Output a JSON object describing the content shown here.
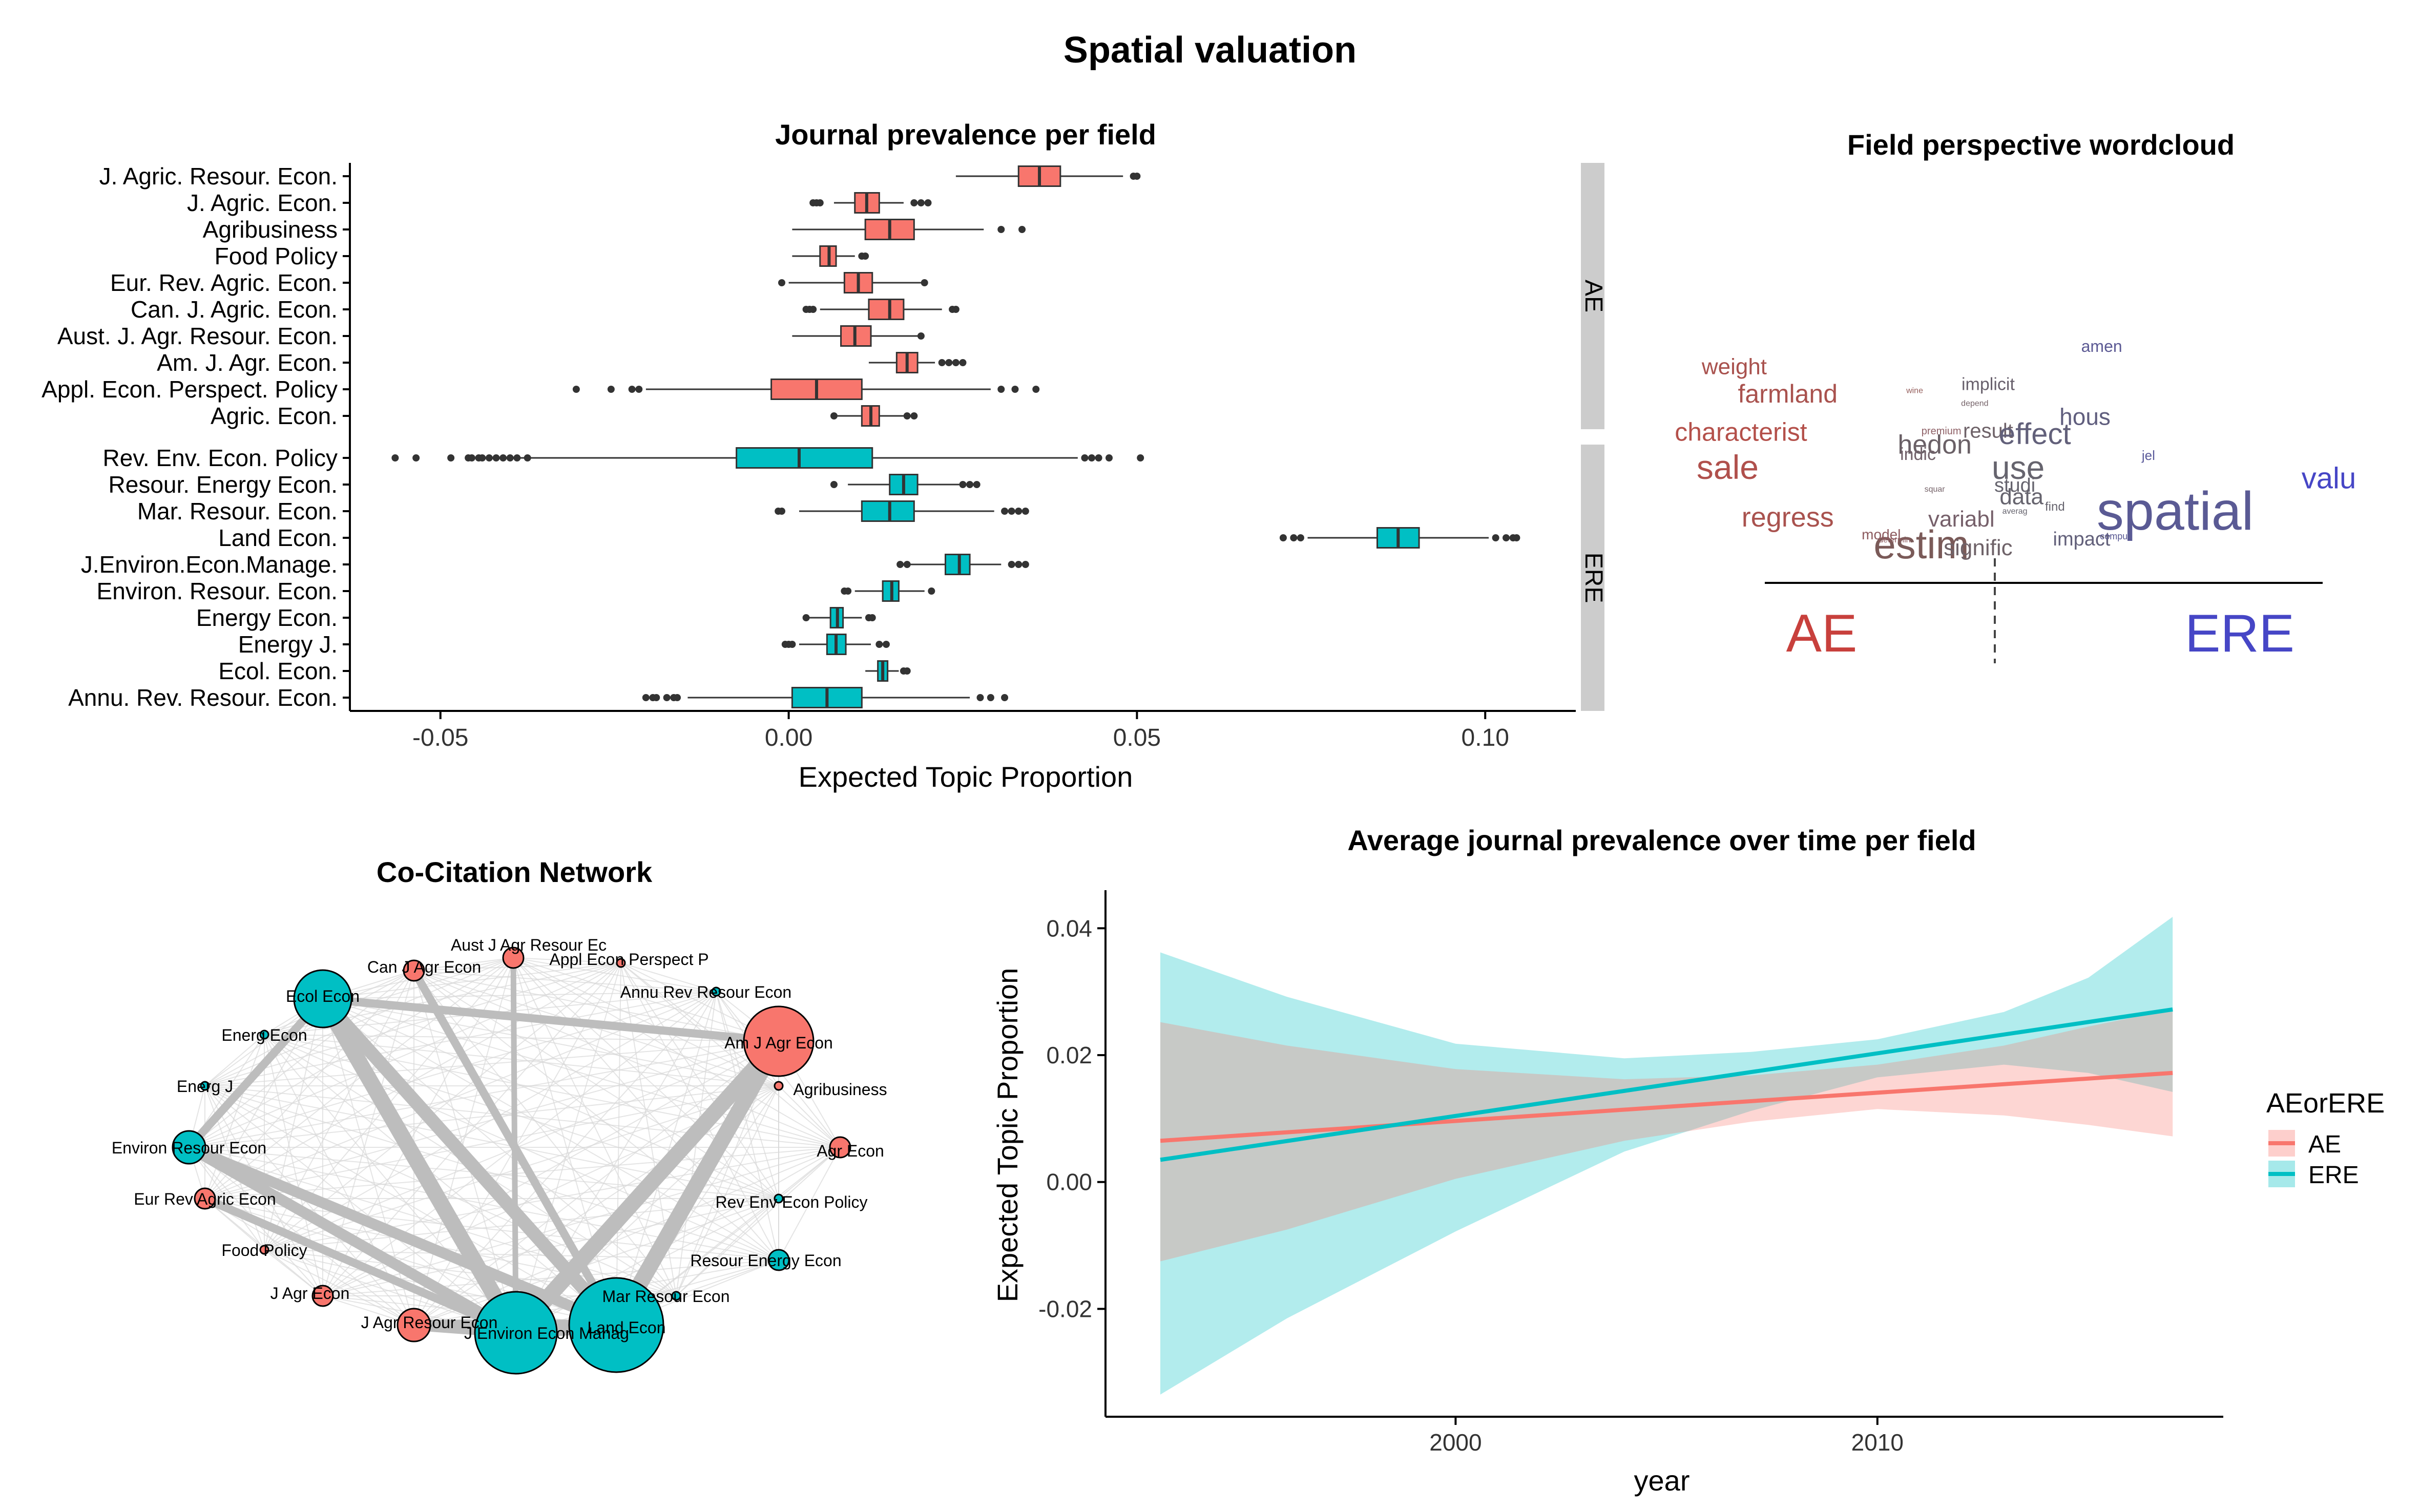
{
  "figure": {
    "title": "Spatial valuation"
  },
  "boxplot": {
    "title": "Journal prevalence per field",
    "xlabel": "Expected Topic Proportion",
    "xticks": [
      "-0.05",
      "0.00",
      "0.05",
      "0.10"
    ],
    "colors": {
      "AE": "#F8766D",
      "ERE": "#00BFC4"
    },
    "facet_labels": [
      "AE",
      "ERE"
    ]
  },
  "wordcloud": {
    "title": "Field perspective wordcloud",
    "left_label": "AE",
    "right_label": "ERE",
    "left_color": "#C8403C",
    "right_color": "#4646C6"
  },
  "network": {
    "title": "Co-Citation Network",
    "colors": {
      "AE": "#F8766D",
      "ERE": "#00BFC4"
    }
  },
  "trend": {
    "title": "Average journal prevalence over time per field",
    "xlabel": "year",
    "ylabel": "Expected Topic Proportion",
    "legend_title": "AEorERE",
    "legend_items": [
      "AE",
      "ERE"
    ]
  },
  "chart_data": [
    {
      "type": "boxplot",
      "title": "Journal prevalence per field",
      "xlabel": "Expected Topic Proportion",
      "xlim": [
        -0.063,
        0.113
      ],
      "grid": false,
      "facets": [
        {
          "name": "AE",
          "color": "#F8766D",
          "rows": [
            {
              "label": "J. Agric. Resour. Econ.",
              "whisker_low": 0.024,
              "q1": 0.033,
              "median": 0.036,
              "q3": 0.039,
              "whisker_high": 0.048,
              "outliers": [
                0.0495,
                0.05
              ]
            },
            {
              "label": "J. Agric. Econ.",
              "whisker_low": 0.0065,
              "q1": 0.0095,
              "median": 0.0112,
              "q3": 0.013,
              "whisker_high": 0.0165,
              "outliers": [
                0.0035,
                0.004,
                0.0045,
                0.018,
                0.019,
                0.02
              ]
            },
            {
              "label": "Agribusiness",
              "whisker_low": 0.0005,
              "q1": 0.011,
              "median": 0.0145,
              "q3": 0.018,
              "whisker_high": 0.028,
              "outliers": [
                0.0305,
                0.0335
              ]
            },
            {
              "label": "Food Policy",
              "whisker_low": 0.0005,
              "q1": 0.0045,
              "median": 0.0058,
              "q3": 0.0068,
              "whisker_high": 0.0095,
              "outliers": [
                0.0105,
                0.011
              ]
            },
            {
              "label": "Eur. Rev. Agric. Econ.",
              "whisker_low": 0.0,
              "q1": 0.008,
              "median": 0.01,
              "q3": 0.012,
              "whisker_high": 0.019,
              "outliers": [
                -0.001,
                0.0195
              ]
            },
            {
              "label": "Can. J. Agric. Econ.",
              "whisker_low": 0.0045,
              "q1": 0.0115,
              "median": 0.0145,
              "q3": 0.0165,
              "whisker_high": 0.022,
              "outliers": [
                0.0025,
                0.003,
                0.0035,
                0.0235,
                0.024
              ]
            },
            {
              "label": "Aust. J. Agr. Resour. Econ.",
              "whisker_low": 0.0005,
              "q1": 0.0075,
              "median": 0.0095,
              "q3": 0.0118,
              "whisker_high": 0.0185,
              "outliers": [
                0.019
              ]
            },
            {
              "label": "Am. J. Agr. Econ.",
              "whisker_low": 0.0115,
              "q1": 0.0155,
              "median": 0.017,
              "q3": 0.0185,
              "whisker_high": 0.021,
              "outliers": [
                0.022,
                0.023,
                0.024,
                0.025
              ]
            },
            {
              "label": "Appl. Econ. Perspect. Policy",
              "whisker_low": -0.0205,
              "q1": -0.0025,
              "median": 0.004,
              "q3": 0.0105,
              "whisker_high": 0.029,
              "outliers": [
                -0.0305,
                -0.0255,
                -0.0225,
                -0.0215,
                0.0305,
                0.0325,
                0.0355
              ]
            },
            {
              "label": "Agric. Econ.",
              "whisker_low": 0.007,
              "q1": 0.0105,
              "median": 0.0118,
              "q3": 0.013,
              "whisker_high": 0.0165,
              "outliers": [
                0.0065,
                0.017,
                0.018
              ]
            }
          ]
        },
        {
          "name": "ERE",
          "color": "#00BFC4",
          "rows": [
            {
              "label": "Rev. Env. Econ. Policy",
              "whisker_low": -0.0445,
              "q1": -0.0075,
              "median": 0.0015,
              "q3": 0.012,
              "whisker_high": 0.0415,
              "outliers": [
                -0.0565,
                -0.0535,
                -0.0485,
                -0.046,
                -0.0455,
                -0.0445,
                -0.044,
                -0.043,
                -0.042,
                -0.041,
                -0.04,
                -0.039,
                -0.0375,
                0.0425,
                0.0435,
                0.0445,
                0.046,
                0.0505
              ]
            },
            {
              "label": "Resour. Energy Econ.",
              "whisker_low": 0.0085,
              "q1": 0.0145,
              "median": 0.0165,
              "q3": 0.0185,
              "whisker_high": 0.0245,
              "outliers": [
                0.0065,
                0.025,
                0.026,
                0.027
              ]
            },
            {
              "label": "Mar. Resour. Econ.",
              "whisker_low": 0.0015,
              "q1": 0.0105,
              "median": 0.0145,
              "q3": 0.018,
              "whisker_high": 0.0295,
              "outliers": [
                -0.0015,
                -0.001,
                0.031,
                0.032,
                0.033,
                0.034
              ]
            },
            {
              "label": "Land Econ.",
              "whisker_low": 0.0745,
              "q1": 0.0845,
              "median": 0.0875,
              "q3": 0.0905,
              "whisker_high": 0.1005,
              "outliers": [
                0.071,
                0.0725,
                0.0735,
                0.1015,
                0.103,
                0.104,
                0.1045
              ]
            },
            {
              "label": "J.Environ.Econ.Manage.",
              "whisker_low": 0.0175,
              "q1": 0.0225,
              "median": 0.0245,
              "q3": 0.026,
              "whisker_high": 0.0305,
              "outliers": [
                0.016,
                0.017,
                0.032,
                0.033,
                0.034
              ]
            },
            {
              "label": "Environ. Resour. Econ.",
              "whisker_low": 0.0095,
              "q1": 0.0135,
              "median": 0.0148,
              "q3": 0.0158,
              "whisker_high": 0.0195,
              "outliers": [
                0.008,
                0.0085,
                0.0205
              ]
            },
            {
              "label": "Energy Econ.",
              "whisker_low": 0.003,
              "q1": 0.006,
              "median": 0.007,
              "q3": 0.0078,
              "whisker_high": 0.0105,
              "outliers": [
                0.0025,
                0.0115,
                0.012
              ]
            },
            {
              "label": "Energy J.",
              "whisker_low": 0.0015,
              "q1": 0.0055,
              "median": 0.0068,
              "q3": 0.0082,
              "whisker_high": 0.0118,
              "outliers": [
                -0.0005,
                0.0,
                0.0005,
                0.013,
                0.014
              ]
            },
            {
              "label": "Ecol. Econ.",
              "whisker_low": 0.011,
              "q1": 0.0128,
              "median": 0.0135,
              "q3": 0.0142,
              "whisker_high": 0.0158,
              "outliers": [
                0.0165,
                0.017
              ]
            },
            {
              "label": "Annu. Rev. Resour. Econ.",
              "whisker_low": -0.0145,
              "q1": 0.0005,
              "median": 0.0055,
              "q3": 0.0105,
              "whisker_high": 0.026,
              "outliers": [
                -0.0205,
                -0.0195,
                -0.019,
                -0.0175,
                -0.0165,
                -0.016,
                0.0275,
                0.029,
                0.031
              ]
            }
          ]
        }
      ]
    },
    {
      "type": "wordcloud",
      "title": "Field perspective wordcloud",
      "categories": [
        "AE",
        "ERE"
      ],
      "words": [
        {
          "text": "weight",
          "size": 44,
          "color": "#A9524E",
          "x": -0.78,
          "y": 0.58
        },
        {
          "text": "farmland",
          "size": 50,
          "color": "#A9524E",
          "x": -0.62,
          "y": 0.49
        },
        {
          "text": "characterist",
          "size": 50,
          "color": "#B4504A",
          "x": -0.76,
          "y": 0.37
        },
        {
          "text": "sale",
          "size": 66,
          "color": "#B0504C",
          "x": -0.8,
          "y": 0.25
        },
        {
          "text": "regress",
          "size": 54,
          "color": "#A9524E",
          "x": -0.62,
          "y": 0.1
        },
        {
          "text": "estim",
          "size": 78,
          "color": "#7A5A58",
          "x": -0.22,
          "y": 0.0
        },
        {
          "text": "wine",
          "size": 16,
          "color": "#96605E",
          "x": -0.24,
          "y": 0.52
        },
        {
          "text": "depend",
          "size": 16,
          "color": "#76646A",
          "x": -0.06,
          "y": 0.48
        },
        {
          "text": "implicit",
          "size": 34,
          "color": "#68606C",
          "x": -0.02,
          "y": 0.53
        },
        {
          "text": "hous",
          "size": 46,
          "color": "#605E7E",
          "x": 0.27,
          "y": 0.42
        },
        {
          "text": "amen",
          "size": 32,
          "color": "#5C5A94",
          "x": 0.32,
          "y": 0.65
        },
        {
          "text": "premium",
          "size": 20,
          "color": "#8E6066",
          "x": -0.16,
          "y": 0.39
        },
        {
          "text": "result",
          "size": 40,
          "color": "#6E6268",
          "x": -0.02,
          "y": 0.38
        },
        {
          "text": "effect",
          "size": 58,
          "color": "#62607A",
          "x": 0.12,
          "y": 0.36
        },
        {
          "text": "hedon",
          "size": 52,
          "color": "#6A6066",
          "x": -0.18,
          "y": 0.33
        },
        {
          "text": "indic",
          "size": 34,
          "color": "#72626A",
          "x": -0.23,
          "y": 0.31
        },
        {
          "text": "jel",
          "size": 26,
          "color": "#5A5A9A",
          "x": 0.46,
          "y": 0.31
        },
        {
          "text": "valu",
          "size": 58,
          "color": "#4646C6",
          "x": 1.0,
          "y": 0.22
        },
        {
          "text": "use",
          "size": 64,
          "color": "#66646E",
          "x": 0.07,
          "y": 0.25
        },
        {
          "text": "studi",
          "size": 38,
          "color": "#66646E",
          "x": 0.06,
          "y": 0.21
        },
        {
          "text": "squar",
          "size": 16,
          "color": "#76646A",
          "x": -0.18,
          "y": 0.21
        },
        {
          "text": "data",
          "size": 44,
          "color": "#66646E",
          "x": 0.08,
          "y": 0.17
        },
        {
          "text": "averag",
          "size": 16,
          "color": "#66646E",
          "x": 0.06,
          "y": 0.14
        },
        {
          "text": "find",
          "size": 24,
          "color": "#66646E",
          "x": 0.18,
          "y": 0.15
        },
        {
          "text": "variabl",
          "size": 44,
          "color": "#76606A",
          "x": -0.1,
          "y": 0.1
        },
        {
          "text": "spatial",
          "size": 106,
          "color": "#5A5A94",
          "x": 0.54,
          "y": 0.09
        },
        {
          "text": "model",
          "size": 28,
          "color": "#8C5A5E",
          "x": -0.34,
          "y": 0.06
        },
        {
          "text": "determin",
          "size": 16,
          "color": "#8C5A5E",
          "x": -0.3,
          "y": 0.05
        },
        {
          "text": "impact",
          "size": 38,
          "color": "#62607A",
          "x": 0.26,
          "y": 0.04
        },
        {
          "text": "comput",
          "size": 18,
          "color": "#5A5A94",
          "x": 0.36,
          "y": 0.06
        },
        {
          "text": "signific",
          "size": 44,
          "color": "#6E6268",
          "x": -0.05,
          "y": 0.01
        }
      ]
    },
    {
      "type": "network",
      "title": "Co-Citation Network",
      "nodes": [
        {
          "label": "Aust J Agr Resour Ec",
          "field": "AE",
          "size": 1
        },
        {
          "label": "Appl Econ Perspect P",
          "field": "AE",
          "size": 0
        },
        {
          "label": "Annu Rev Resour Econ",
          "field": "ERE",
          "size": 0
        },
        {
          "label": "Am J Agr Econ",
          "field": "AE",
          "size": 5
        },
        {
          "label": "Agribusiness",
          "field": "AE",
          "size": 0
        },
        {
          "label": "Agr Econ",
          "field": "AE",
          "size": 1
        },
        {
          "label": "Rev Env Econ Policy",
          "field": "ERE",
          "size": 0
        },
        {
          "label": "Resour Energy Econ",
          "field": "ERE",
          "size": 1
        },
        {
          "label": "Mar Resour Econ",
          "field": "ERE",
          "size": 0
        },
        {
          "label": "Land Econ",
          "field": "ERE",
          "size": 7
        },
        {
          "label": "J Environ Econ Manag",
          "field": "ERE",
          "size": 6
        },
        {
          "label": "J Agr Resour Econ",
          "field": "AE",
          "size": 2
        },
        {
          "label": "J Agr Econ",
          "field": "AE",
          "size": 1
        },
        {
          "label": "Food Policy",
          "field": "AE",
          "size": 0
        },
        {
          "label": "Eur Rev Agric Econ",
          "field": "AE",
          "size": 1
        },
        {
          "label": "Environ Resour Econ",
          "field": "ERE",
          "size": 2
        },
        {
          "label": "Energ J",
          "field": "ERE",
          "size": 0
        },
        {
          "label": "Energ Econ",
          "field": "ERE",
          "size": 0
        },
        {
          "label": "Ecol Econ",
          "field": "ERE",
          "size": 4
        },
        {
          "label": "Can J Agr Econ",
          "field": "AE",
          "size": 1
        }
      ],
      "strong_edges": [
        [
          "Ecol Econ",
          "J Environ Econ Manag",
          5
        ],
        [
          "Ecol Econ",
          "Land Econ",
          4
        ],
        [
          "Am J Agr Econ",
          "J Environ Econ Manag",
          5
        ],
        [
          "Am J Agr Econ",
          "Land Econ",
          5
        ],
        [
          "Environ Resour Econ",
          "J Environ Econ Manag",
          3
        ],
        [
          "Environ Resour Econ",
          "Land Econ",
          3
        ],
        [
          "J Environ Econ Manag",
          "Land Econ",
          4
        ],
        [
          "J Agr Resour Econ",
          "Land Econ",
          3
        ],
        [
          "J Agr Resour Econ",
          "J Environ Econ Manag",
          3
        ],
        [
          "Ecol Econ",
          "Am J Agr Econ",
          2
        ],
        [
          "Environ Resour Econ",
          "Ecol Econ",
          2
        ],
        [
          "Can J Agr Econ",
          "Land Econ",
          2
        ],
        [
          "Aust J Agr Resour Ec",
          "J Environ Econ Manag",
          1
        ],
        [
          "Eur Rev Agric Econ",
          "J Environ Econ Manag",
          2
        ]
      ]
    },
    {
      "type": "line",
      "title": "Average journal prevalence over time per field",
      "xlabel": "year",
      "ylabel": "Expected Topic Proportion",
      "xlim": [
        1991.7,
        2018.2
      ],
      "ylim": [
        -0.037,
        0.046
      ],
      "xticks": [
        2000,
        2010
      ],
      "yticks": [
        -0.02,
        0.0,
        0.02,
        0.04
      ],
      "legend": {
        "title": "AEorERE",
        "placement": "right"
      },
      "series": [
        {
          "name": "AE",
          "line_color": "#F8766D",
          "x": [
            1993,
            2017
          ],
          "y": [
            0.0065,
            0.0172
          ],
          "ribbon": {
            "x": [
              1993,
              1996,
              2000,
              2004,
              2007,
              2010,
              2013,
              2015,
              2017
            ],
            "lower": [
              -0.0125,
              -0.0075,
              0.0005,
              0.0065,
              0.0095,
              0.0115,
              0.0105,
              0.009,
              0.0072
            ],
            "upper": [
              0.0252,
              0.0215,
              0.0178,
              0.0162,
              0.0168,
              0.0185,
              0.0215,
              0.0245,
              0.0272
            ]
          }
        },
        {
          "name": "ERE",
          "line_color": "#00BFC4",
          "x": [
            1993,
            2017
          ],
          "y": [
            0.0035,
            0.0272
          ],
          "ribbon": {
            "x": [
              1993,
              1996,
              2000,
              2004,
              2007,
              2010,
              2013,
              2015,
              2017
            ],
            "lower": [
              -0.0335,
              -0.0215,
              -0.0078,
              0.0048,
              0.0112,
              0.0165,
              0.0185,
              0.0172,
              0.0142
            ],
            "upper": [
              0.0362,
              0.0292,
              0.0218,
              0.0195,
              0.0205,
              0.0225,
              0.0268,
              0.0322,
              0.0418
            ]
          }
        }
      ]
    }
  ]
}
